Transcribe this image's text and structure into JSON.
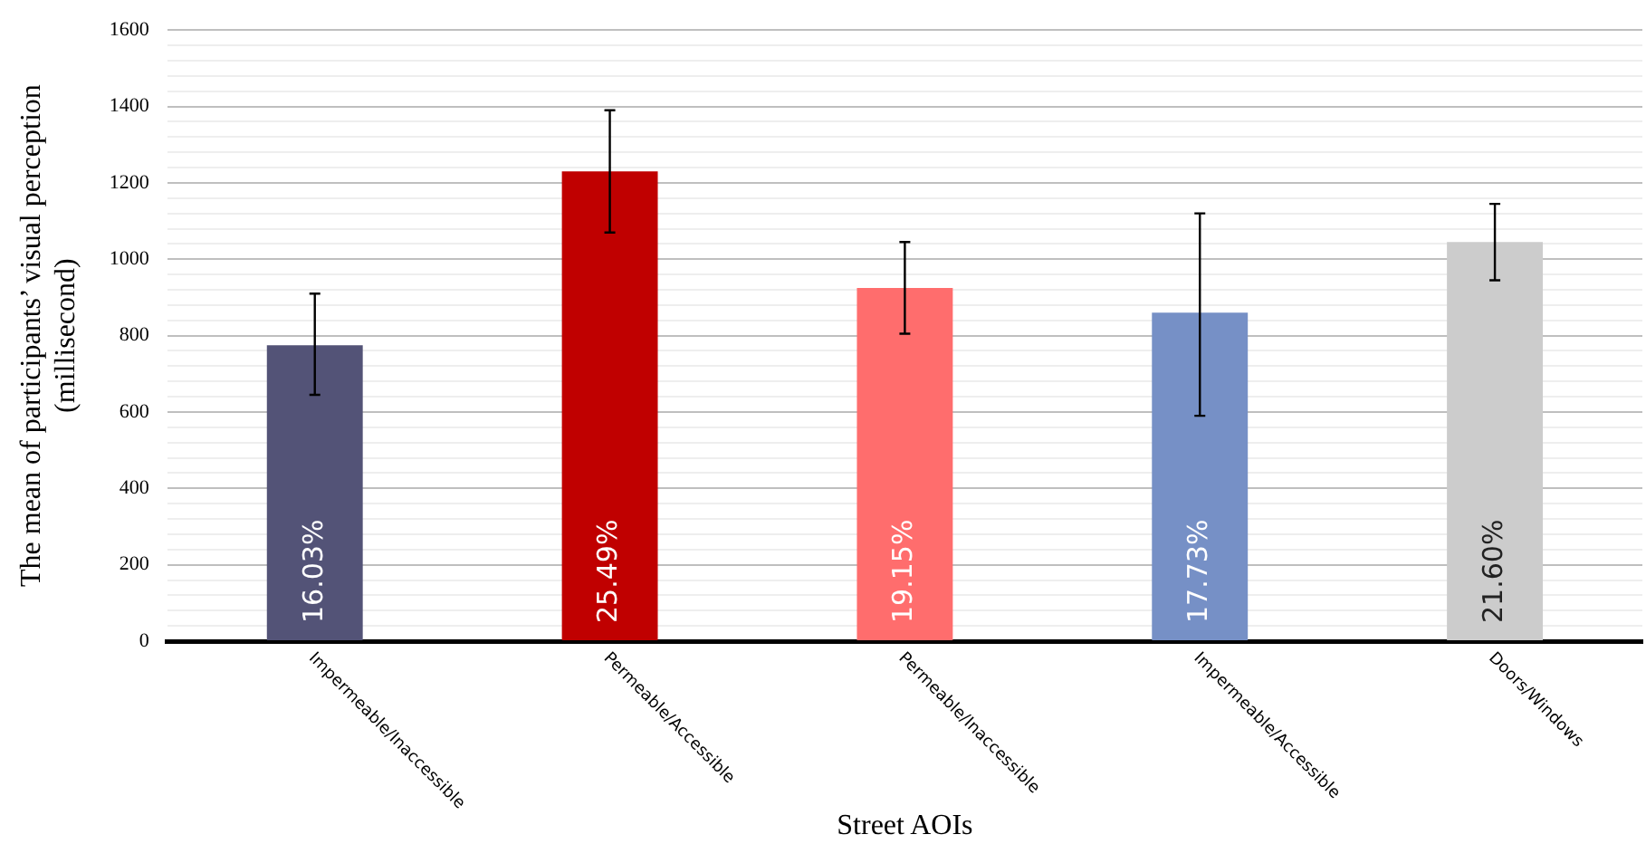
{
  "chart_data": {
    "type": "bar",
    "xlabel": "Street AOIs",
    "ylabel": "The mean of participants’ visual perception (millisecond)",
    "categories": [
      "Impermeable/Inaccessible",
      "Permeable/Accessible",
      "Permeable/Inaccessible",
      "Impermeable/Accessible",
      "Doors/Windows"
    ],
    "values": [
      775,
      1230,
      925,
      860,
      1045
    ],
    "colors": [
      "#535377",
      "#c00000",
      "#ff6d6d",
      "#7690c6",
      "#cccccc"
    ],
    "errors": [
      [
        645,
        910
      ],
      [
        1070,
        1390
      ],
      [
        805,
        1045
      ],
      [
        590,
        1120
      ],
      [
        945,
        1145
      ]
    ],
    "annotations": [
      "16.03%",
      "25.49%",
      "19.15%",
      "17.73%",
      "21.60%"
    ],
    "ylim": [
      0,
      1600
    ],
    "yticks": [
      0,
      {
        "value": 40,
        "label": null
      },
      {
        "value": 80,
        "label": null
      },
      {
        "value": 120,
        "label": null
      },
      {
        "value": 160,
        "label": null
      },
      200,
      {
        "value": 240,
        "label": null
      },
      {
        "value": 280,
        "label": null
      },
      {
        "value": 320,
        "label": null
      },
      {
        "value": 360,
        "label": null
      },
      400,
      {
        "value": 440,
        "label": null
      },
      {
        "value": 480,
        "label": null
      },
      {
        "value": 520,
        "label": null
      },
      {
        "value": 560,
        "label": null
      },
      600,
      {
        "value": 640,
        "label": null
      },
      {
        "value": 680,
        "label": null
      },
      {
        "value": 720,
        "label": null
      },
      {
        "value": 760,
        "label": null
      },
      800,
      {
        "value": 840,
        "label": null
      },
      {
        "value": 880,
        "label": null
      },
      {
        "value": 920,
        "label": null
      },
      {
        "value": 960,
        "label": null
      },
      1000,
      {
        "value": 1040,
        "label": null
      },
      {
        "value": 1080,
        "label": null
      },
      {
        "value": 1120,
        "label": null
      },
      {
        "value": 1160,
        "label": null
      },
      1200,
      {
        "value": 1240,
        "label": null
      },
      {
        "value": 1280,
        "label": null
      },
      {
        "value": 1320,
        "label": null
      },
      {
        "value": 1360,
        "label": null
      },
      1400,
      {
        "value": 1440,
        "label": null
      },
      {
        "value": 1480,
        "label": null
      },
      {
        "value": 1520,
        "label": null
      },
      {
        "value": 1560,
        "label": null
      },
      1600
    ],
    "grid": "y",
    "legend": false
  }
}
